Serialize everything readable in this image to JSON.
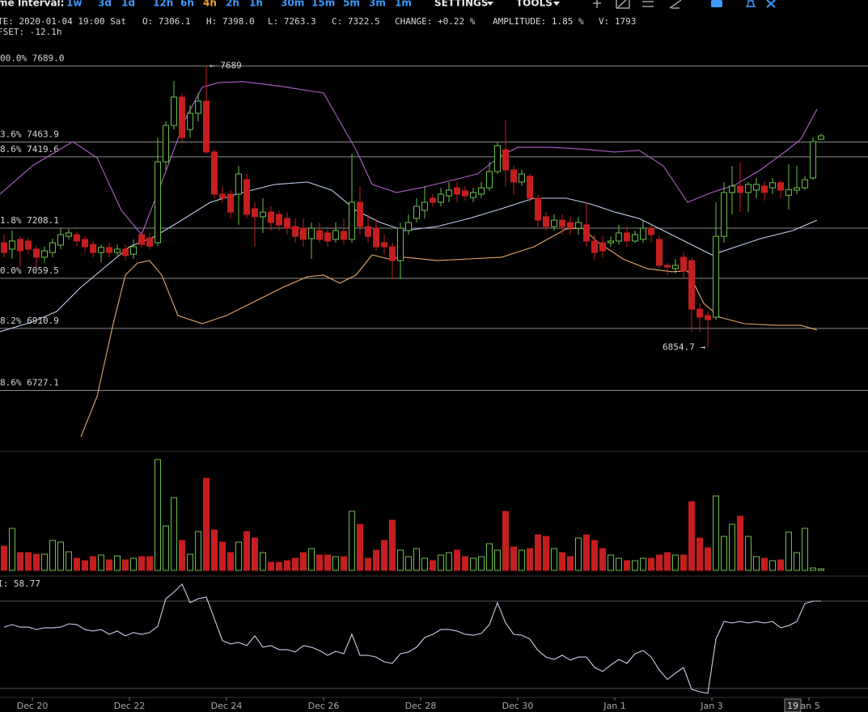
{
  "toolbar": {
    "interval_label": "me Interval:",
    "intervals": [
      "1w",
      "3d",
      "1d",
      "12h",
      "6h",
      "4h",
      "2h",
      "1h",
      "30m",
      "15m",
      "5m",
      "3m",
      "1m"
    ],
    "settings": "SETTINGS",
    "tools": "TOOLS"
  },
  "info": {
    "date": "TE: 2020-01-04 19:00 Sat",
    "open": "O: 7306.1",
    "high": "H: 7398.0",
    "low": "L: 7263.3",
    "close": "C: 7322.5",
    "change": "CHANGE: +0.22 %",
    "amplitude": "AMPLITUDE: 1.85 %",
    "volume": "V: 1793",
    "offset": "FSET: -12.1h"
  },
  "cursor_label": "19",
  "chart_data": [
    {
      "type": "candlestick",
      "xlim": [
        -0.5,
        106.8
      ],
      "ylim": [
        6553,
        7789
      ],
      "up_color": "#6cc04a",
      "down_color": "#c41e1e",
      "open": [
        7165,
        7146,
        7175,
        7170,
        7146,
        7122,
        7136,
        7158,
        7184,
        7189,
        7175,
        7160,
        7136,
        7151,
        7136,
        7146,
        7131,
        7189,
        7179,
        7165,
        7405,
        7513,
        7597,
        7501,
        7549,
        7585,
        7434,
        7309,
        7309,
        7309,
        7352,
        7266,
        7242,
        7256,
        7249,
        7237,
        7213,
        7208,
        7177,
        7201,
        7194,
        7175,
        7199,
        7175,
        7285,
        7213,
        7208,
        7165,
        7153,
        7112,
        7201,
        7237,
        7261,
        7297,
        7285,
        7304,
        7328,
        7319,
        7299,
        7309,
        7328,
        7376,
        7441,
        7381,
        7345,
        7362,
        7297,
        7242,
        7213,
        7232,
        7225,
        7208,
        7218,
        7170,
        7165,
        7165,
        7170,
        7194,
        7170,
        7175,
        7208,
        7175,
        7098,
        7088,
        7122,
        7112,
        6968,
        6949,
        6944,
        7184,
        7314,
        7333,
        7314,
        7321,
        7333,
        7328,
        7343,
        7306.1,
        7321,
        7328,
        7357,
        7472
      ],
      "high": [
        7189,
        7201,
        7184,
        7179,
        7155,
        7153,
        7177,
        7208,
        7206,
        7199,
        7184,
        7170,
        7160,
        7165,
        7160,
        7160,
        7175,
        7199,
        7194,
        7477,
        7525,
        7645,
        7609,
        7573,
        7609,
        7689,
        7441,
        7333,
        7321,
        7393,
        7369,
        7285,
        7297,
        7273,
        7261,
        7256,
        7237,
        7237,
        7225,
        7225,
        7213,
        7225,
        7237,
        7429,
        7333,
        7249,
        7237,
        7189,
        7165,
        7225,
        7249,
        7297,
        7333,
        7309,
        7328,
        7345,
        7345,
        7333,
        7328,
        7345,
        7405,
        7465,
        7530,
        7393,
        7381,
        7369,
        7309,
        7256,
        7249,
        7249,
        7242,
        7242,
        7285,
        7189,
        7184,
        7184,
        7218,
        7213,
        7201,
        7232,
        7218,
        7189,
        7105,
        7117,
        7136,
        7122,
        6983,
        6961,
        7285,
        7345,
        7393,
        7405,
        7345,
        7357,
        7345,
        7357,
        7352,
        7398.0,
        7393,
        7362,
        7477,
        7489
      ],
      "low": [
        7122,
        7117,
        7093,
        7131,
        7093,
        7105,
        7122,
        7146,
        7175,
        7155,
        7136,
        7122,
        7107,
        7122,
        7127,
        7112,
        7117,
        7151,
        7146,
        7155,
        7381,
        7501,
        7465,
        7477,
        7525,
        7429,
        7297,
        7285,
        7237,
        7218,
        7237,
        7153,
        7194,
        7201,
        7201,
        7189,
        7165,
        7153,
        7117,
        7165,
        7153,
        7165,
        7160,
        7165,
        7189,
        7165,
        7141,
        7129,
        7057,
        7057,
        7189,
        7225,
        7237,
        7273,
        7273,
        7285,
        7285,
        7290,
        7285,
        7297,
        7319,
        7369,
        7333,
        7309,
        7333,
        7285,
        7213,
        7201,
        7201,
        7189,
        7189,
        7189,
        7153,
        7112,
        7122,
        7153,
        7160,
        7153,
        7165,
        7165,
        7165,
        7088,
        7069,
        7074,
        7057,
        6901,
        6901,
        6854.7,
        6937,
        7165,
        7249,
        7256,
        7256,
        7297,
        7290,
        7309,
        7297,
        7263.3,
        7309,
        7321,
        7352,
        7470
      ],
      "close": [
        7136,
        7170,
        7141,
        7146,
        7122,
        7141,
        7165,
        7189,
        7194,
        7170,
        7153,
        7136,
        7151,
        7136,
        7146,
        7127,
        7153,
        7160,
        7155,
        7405,
        7513,
        7597,
        7477,
        7549,
        7585,
        7434,
        7309,
        7297,
        7256,
        7369,
        7249,
        7242,
        7256,
        7225,
        7218,
        7208,
        7184,
        7175,
        7208,
        7175,
        7170,
        7201,
        7175,
        7285,
        7213,
        7184,
        7153,
        7153,
        7112,
        7208,
        7225,
        7273,
        7285,
        7285,
        7309,
        7321,
        7309,
        7304,
        7314,
        7328,
        7376,
        7453,
        7381,
        7345,
        7369,
        7297,
        7232,
        7213,
        7232,
        7213,
        7208,
        7225,
        7170,
        7136,
        7141,
        7170,
        7194,
        7170,
        7189,
        7208,
        7189,
        7098,
        7093,
        7098,
        7081,
        6968,
        6944,
        6937,
        7184,
        7314,
        7333,
        7314,
        7338,
        7338,
        7314,
        7343,
        7321,
        7322.5,
        7328,
        7352,
        7465,
        7482
      ],
      "levels": [
        {
          "value": 7689.0,
          "label": "00.0% 7689.0"
        },
        {
          "value": 7463.9,
          "label": "3.6% 7463.9"
        },
        {
          "value": 7419.6,
          "label": "8.6% 7419.6"
        },
        {
          "value": 7208.1,
          "label": "1.8% 7208.1"
        },
        {
          "value": 7059.5,
          "label": "0.0% 7059.5"
        },
        {
          "value": 6910.9,
          "label": "8.2% 6910.9"
        },
        {
          "value": 6727.1,
          "label": "8.6% 6727.1"
        }
      ],
      "level_color": "#8a8a8a",
      "max_label": "← 7689",
      "min_label": "6854.7 →",
      "overlays": [
        {
          "color": "#b060c8",
          "x": [
            -0.5,
            3.5,
            8.5,
            11.5,
            14.5,
            17,
            19.5,
            22.5,
            24.5,
            26.5,
            29.5,
            34.5,
            39.5,
            41.5,
            43.5,
            45.5,
            48.5,
            51.5,
            54.5,
            58.5,
            61.5,
            63.5,
            67.5,
            71.5,
            75.5,
            78.5,
            81.5,
            84.5,
            87.5,
            90.5,
            93.5,
            96.5,
            98.5,
            100.5
          ],
          "values": [
            7309,
            7393,
            7465,
            7417,
            7261,
            7189,
            7345,
            7537,
            7626,
            7640,
            7643,
            7628,
            7609,
            7525,
            7441,
            7338,
            7314,
            7328,
            7345,
            7369,
            7424,
            7448,
            7448,
            7443,
            7434,
            7439,
            7393,
            7285,
            7314,
            7338,
            7381,
            7434,
            7472,
            7561
          ]
        },
        {
          "color": "#c0d0f0",
          "x": [
            -0.5,
            3.5,
            6.5,
            9.5,
            12.5,
            15.5,
            18.5,
            21.5,
            25.5,
            29.5,
            33.5,
            37.5,
            40.5,
            43.5,
            46.5,
            49.5,
            53.5,
            57.5,
            61.5,
            65.5,
            69.5,
            72.5,
            75.5,
            78.5,
            81.5,
            84.5,
            87.5,
            90.5,
            93.5,
            97.5,
            100.5
          ],
          "values": [
            6901,
            6930,
            6961,
            7033,
            7093,
            7153,
            7182,
            7225,
            7285,
            7314,
            7338,
            7345,
            7321,
            7261,
            7225,
            7201,
            7213,
            7237,
            7266,
            7297,
            7297,
            7280,
            7256,
            7237,
            7201,
            7165,
            7129,
            7153,
            7177,
            7201,
            7232
          ]
        },
        {
          "color": "#e8a868",
          "x": [
            9.5,
            11.5,
            13.5,
            15,
            16.5,
            18,
            19.5,
            21.5,
            24.5,
            27.5,
            31.5,
            34.5,
            37.5,
            39.5,
            41.5,
            43.5,
            45.5,
            47.5,
            49.5,
            53.5,
            57.5,
            61.5,
            65.5,
            69.5,
            71.5,
            73.5,
            76.5,
            79.5,
            82.5,
            84.5,
            86.5,
            88.5,
            91.5,
            95.5,
            98.5,
            100.5
          ],
          "values": [
            6589,
            6709,
            6925,
            7069,
            7105,
            7112,
            7069,
            6949,
            6925,
            6949,
            6997,
            7033,
            7064,
            7069,
            7045,
            7069,
            7129,
            7117,
            7122,
            7112,
            7117,
            7122,
            7153,
            7206,
            7208,
            7165,
            7117,
            7088,
            7079,
            7081,
            6985,
            6944,
            6925,
            6920,
            6920,
            6906
          ]
        }
      ]
    },
    {
      "type": "bar",
      "xlim": [
        -0.5,
        106.8
      ],
      "ylim": [
        0,
        5510
      ],
      "values": [
        1140,
        1976,
        836,
        836,
        760,
        760,
        1406,
        1330,
        874,
        570,
        456,
        646,
        722,
        494,
        684,
        494,
        570,
        646,
        646,
        5206,
        2090,
        3420,
        1406,
        760,
        1824,
        4332,
        1900,
        1330,
        836,
        1330,
        1824,
        1520,
        836,
        380,
        380,
        456,
        570,
        836,
        1026,
        722,
        722,
        646,
        646,
        2774,
        2166,
        570,
        950,
        1406,
        2356,
        950,
        646,
        1026,
        570,
        456,
        722,
        836,
        950,
        646,
        570,
        646,
        1254,
        950,
        2774,
        1102,
        950,
        1026,
        1672,
        1596,
        1026,
        836,
        646,
        1520,
        1672,
        1406,
        1026,
        722,
        570,
        456,
        456,
        570,
        570,
        722,
        836,
        722,
        722,
        3230,
        1520,
        1064,
        3496,
        1596,
        2166,
        2546,
        1596,
        646,
        570,
        456,
        494,
        1793,
        836,
        1976,
        114,
        76
      ]
    },
    {
      "type": "line",
      "xlim": [
        -0.5,
        106.8
      ],
      "ylim": [
        27,
        80
      ],
      "color": "#c8d0ec",
      "label": "I: 58.77",
      "levels": [
        70,
        30
      ],
      "level_color": "#555",
      "values": [
        58.1,
        59.3,
        58.1,
        58.1,
        57.0,
        57.8,
        57.8,
        58.1,
        59.6,
        59.3,
        57.0,
        56.3,
        57.0,
        54.8,
        56.3,
        54.1,
        55.6,
        54.8,
        55.6,
        58.5,
        71.1,
        74.1,
        77.8,
        69.3,
        71.1,
        71.9,
        61.9,
        51.9,
        50.4,
        51.1,
        49.6,
        54.1,
        48.9,
        49.6,
        47.8,
        47.8,
        46.7,
        49.6,
        48.9,
        47.4,
        45.2,
        47.0,
        45.9,
        54.8,
        45.2,
        45.2,
        44.4,
        42.2,
        41.5,
        45.9,
        46.7,
        48.9,
        53.3,
        54.8,
        57.0,
        57.0,
        56.3,
        54.8,
        54.4,
        55.2,
        59.3,
        69.3,
        60.0,
        54.8,
        54.4,
        52.6,
        47.4,
        44.4,
        43.3,
        45.2,
        43.0,
        44.4,
        44.4,
        39.6,
        37.8,
        40.7,
        43.3,
        41.5,
        45.9,
        47.4,
        44.4,
        38.5,
        34.1,
        37.0,
        39.6,
        29.6,
        28.5,
        27.8,
        52.6,
        60.7,
        60.0,
        60.7,
        60.0,
        60.7,
        60.0,
        60.7,
        57.8,
        58.77,
        60.7,
        68.9,
        70.0,
        70.0
      ],
      "xticks": [
        {
          "value": 3.5,
          "label": "Dec 20"
        },
        {
          "value": 15.5,
          "label": "Dec 22"
        },
        {
          "value": 27.5,
          "label": "Dec 24"
        },
        {
          "value": 39.5,
          "label": "Dec 26"
        },
        {
          "value": 51.5,
          "label": "Dec 28"
        },
        {
          "value": 63.5,
          "label": "Dec 30"
        },
        {
          "value": 75.5,
          "label": "Jan 1"
        },
        {
          "value": 87.5,
          "label": "Jan 3"
        },
        {
          "value": 99.5,
          "label": "Jan 5"
        }
      ]
    }
  ]
}
